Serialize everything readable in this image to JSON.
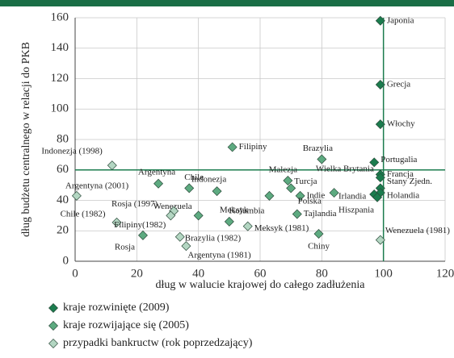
{
  "chart_data": {
    "type": "scatter",
    "xlabel": "dług w walucie krajowej do całego zadłużenia",
    "ylabel": "dług budżetu centralnego w relacji do PKB",
    "xlim": [
      0,
      120
    ],
    "xticks": [
      0,
      20,
      40,
      60,
      80,
      100,
      120
    ],
    "ylim": [
      0,
      160
    ],
    "yticks": [
      0,
      20,
      40,
      60,
      80,
      100,
      120,
      140,
      160
    ],
    "grid": true,
    "ref_lines": {
      "x": 100,
      "y": 60,
      "color": "#1b7c4e"
    },
    "series": [
      {
        "name": "kraje rozwinięte (2009)",
        "color": "#1b7c4e",
        "labels": [
          "Japonia",
          "Grecja",
          "Włochy",
          "Portugalia",
          "Francja",
          "Wielka Brytania",
          "Stany Zjedn.",
          "Holandia",
          "Irlandia",
          "Hiszpania"
        ],
        "x": [
          99,
          99,
          99,
          97,
          99,
          99,
          99,
          99,
          97,
          98
        ],
        "values": [
          158,
          116,
          90,
          65,
          57,
          55,
          48,
          45,
          44,
          42
        ]
      },
      {
        "name": "kraje rozwijające się  (2005)",
        "color": "#5daa80",
        "labels": [
          "Filipiny",
          "Brazylia",
          "Argentyna",
          "Chile",
          "Indonezja",
          "Kolumbia",
          "Malezja",
          "Turcja",
          "Indie",
          "Polska",
          "Tajlandia",
          "Wenezuela",
          "Meksyk",
          "Chiny",
          "Rosja"
        ],
        "x": [
          51,
          80,
          27,
          37,
          46,
          63,
          69,
          70,
          73,
          84,
          72,
          40,
          50,
          79,
          22
        ],
        "values": [
          75,
          67,
          51,
          48,
          46,
          43,
          53,
          48,
          43,
          45,
          31,
          30,
          26,
          18,
          17
        ]
      },
      {
        "name": "przypadki bankructw (rok poprzedzający)",
        "color": "#b3d6c2",
        "labels": [
          "Indonezja (1998)",
          "Argentyna (2001)",
          "Rosja (1997)",
          "Chile (1982)",
          "Filipiny(1982)",
          "Meksyk (1981)",
          "Brazylia (1982)",
          "Argentyna (1981)",
          "Wenezuela (1981)"
        ],
        "x": [
          12,
          0.5,
          32,
          13.5,
          31,
          56,
          34,
          36,
          99
        ],
        "values": [
          63,
          43,
          33,
          25.5,
          30,
          23,
          16,
          10,
          14
        ]
      }
    ]
  }
}
